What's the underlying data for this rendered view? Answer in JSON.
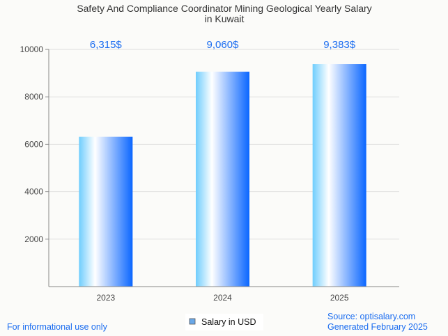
{
  "chart_data": {
    "type": "bar",
    "title_lines": [
      "Safety And Compliance Coordinator Mining Geological Yearly Salary",
      "in Kuwait"
    ],
    "categories": [
      "2023",
      "2024",
      "2025"
    ],
    "values": [
      6315,
      9060,
      9383
    ],
    "data_labels": [
      "6,315$",
      "9,060$",
      "9,383$"
    ],
    "ylim": [
      0,
      10000
    ],
    "yticks": [
      2000,
      4000,
      6000,
      8000,
      10000
    ],
    "grid": true,
    "legend": {
      "label": "Salary in USD",
      "placement": "bottom-center",
      "color": "#6aa8e8"
    },
    "xlabel": "",
    "ylabel": ""
  },
  "footer": {
    "disclaimer": "For informational use only",
    "source": "Source: optisalary.com",
    "generated": "Generated February 2025"
  },
  "colors": {
    "label": "#1a6cf0",
    "bar_left": "#6fcdfd",
    "bar_mid": "#ffffff",
    "bar_right": "#0a66ff"
  }
}
